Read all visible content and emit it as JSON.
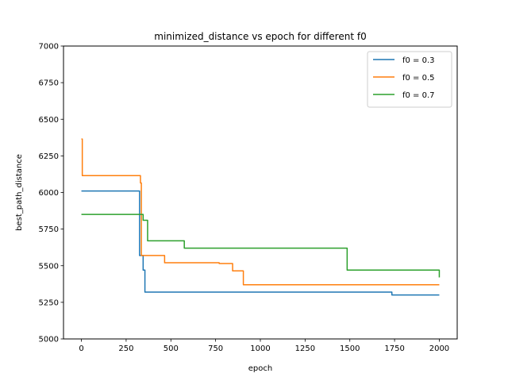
{
  "chart_data": {
    "type": "line",
    "title": "minimized_distance vs epoch for different f0",
    "xlabel": "epoch",
    "ylabel": "best_path_distance",
    "xlim": [
      -100,
      2100
    ],
    "ylim": [
      5000,
      7000
    ],
    "xticks": [
      0,
      250,
      500,
      750,
      1000,
      1250,
      1500,
      1750,
      2000
    ],
    "yticks": [
      5000,
      5250,
      5500,
      5750,
      6000,
      6250,
      6500,
      6750,
      7000
    ],
    "grid": false,
    "legend_position": "top-right",
    "series": [
      {
        "name": "f0 = 0.3",
        "color": "#1f77b4",
        "step": "post",
        "x": [
          0,
          320,
          325,
          345,
          355,
          1735,
          2000
        ],
        "y": [
          6010,
          6010,
          5570,
          5470,
          5320,
          5300,
          5300
        ]
      },
      {
        "name": "f0 = 0.5",
        "color": "#ff7f0e",
        "step": "post",
        "x": [
          0,
          5,
          325,
          330,
          335,
          465,
          770,
          845,
          905,
          2000
        ],
        "y": [
          6365,
          6115,
          6115,
          6065,
          5570,
          5520,
          5515,
          5465,
          5370,
          5370
        ]
      },
      {
        "name": "f0 = 0.7",
        "color": "#2ca02c",
        "step": "post",
        "x": [
          0,
          325,
          345,
          370,
          575,
          1485,
          2000
        ],
        "y": [
          5850,
          5850,
          5810,
          5670,
          5620,
          5470,
          5420
        ]
      }
    ]
  }
}
